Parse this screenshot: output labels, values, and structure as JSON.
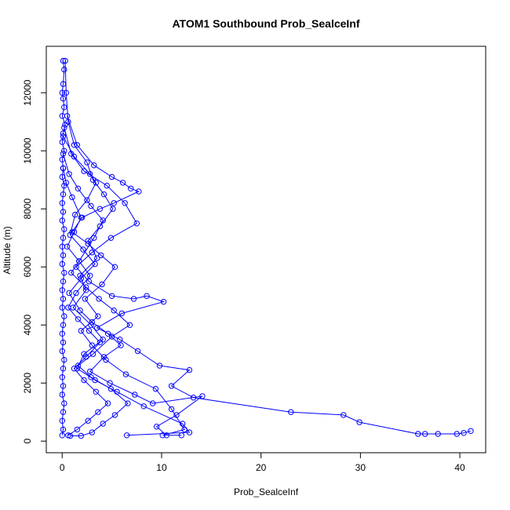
{
  "chart_data": {
    "type": "line",
    "title": "ATOM1 Southbound Prob_SealceInf",
    "xlabel": "Prob_SealceInf",
    "ylabel": "Altitude (m)",
    "xlim": [
      -1.6,
      42.6
    ],
    "ylim": [
      -400,
      13600
    ],
    "xticks": [
      0,
      10,
      20,
      30,
      40
    ],
    "yticks": [
      0,
      2000,
      4000,
      6000,
      8000,
      10000,
      12000
    ],
    "grid": false,
    "legend": "none",
    "marker": "open-circle",
    "color": "#0000ff",
    "series": [
      {
        "points": [
          [
            0.1,
            13100
          ],
          [
            0.2,
            12800
          ],
          [
            0.1,
            12300
          ],
          [
            0.0,
            12000
          ],
          [
            0.1,
            11800
          ],
          [
            0.2,
            11500
          ],
          [
            0.0,
            11200
          ],
          [
            0.3,
            10900
          ],
          [
            0.1,
            10600
          ],
          [
            0.0,
            10300
          ],
          [
            0.2,
            10000
          ],
          [
            0.0,
            9700
          ],
          [
            0.1,
            9400
          ],
          [
            0.0,
            9100
          ],
          [
            0.2,
            8800
          ],
          [
            0.1,
            8500
          ],
          [
            0.0,
            8200
          ],
          [
            0.1,
            7900
          ],
          [
            0.0,
            7600
          ],
          [
            0.2,
            7300
          ],
          [
            0.1,
            7000
          ],
          [
            0.0,
            6700
          ],
          [
            0.1,
            6400
          ],
          [
            0.0,
            6100
          ],
          [
            0.2,
            5800
          ],
          [
            0.1,
            5500
          ],
          [
            0.0,
            5200
          ],
          [
            0.1,
            4900
          ],
          [
            0.0,
            4600
          ],
          [
            0.2,
            4300
          ],
          [
            0.1,
            4000
          ],
          [
            0.0,
            3700
          ],
          [
            0.1,
            3400
          ],
          [
            0.0,
            3100
          ],
          [
            0.2,
            2800
          ],
          [
            0.1,
            2500
          ],
          [
            0.0,
            2200
          ],
          [
            0.1,
            1900
          ],
          [
            0.0,
            1600
          ],
          [
            0.2,
            1300
          ],
          [
            0.1,
            1000
          ],
          [
            0.0,
            700
          ],
          [
            0.1,
            400
          ],
          [
            0.0,
            200
          ]
        ]
      },
      {
        "points": [
          [
            0.3,
            13100
          ],
          [
            0.4,
            12000
          ],
          [
            0.6,
            11000
          ],
          [
            1.2,
            10200
          ],
          [
            2.5,
            9600
          ],
          [
            3.1,
            9000
          ],
          [
            4.2,
            8500
          ],
          [
            5.1,
            8000
          ],
          [
            3.8,
            7400
          ],
          [
            2.6,
            6900
          ],
          [
            3.5,
            6300
          ],
          [
            1.8,
            5700
          ],
          [
            2.4,
            5200
          ],
          [
            1.1,
            4600
          ],
          [
            2.9,
            4000
          ],
          [
            4.1,
            3500
          ],
          [
            2.2,
            3000
          ],
          [
            1.5,
            2500
          ],
          [
            3.3,
            2100
          ],
          [
            5.5,
            1700
          ],
          [
            8.2,
            1200
          ],
          [
            12.1,
            600
          ],
          [
            12.8,
            300
          ],
          [
            6.5,
            200
          ]
        ]
      },
      {
        "points": [
          [
            0.5,
            11200
          ],
          [
            1.5,
            10200
          ],
          [
            3.2,
            9500
          ],
          [
            5.0,
            9100
          ],
          [
            6.1,
            8900
          ],
          [
            6.9,
            8700
          ],
          [
            7.7,
            8600
          ],
          [
            5.2,
            8200
          ],
          [
            3.8,
            8000
          ],
          [
            2.0,
            7700
          ],
          [
            1.0,
            7200
          ],
          [
            2.6,
            6800
          ],
          [
            3.9,
            6400
          ],
          [
            5.3,
            6000
          ],
          [
            4.0,
            5400
          ],
          [
            2.3,
            4900
          ],
          [
            3.6,
            4300
          ],
          [
            1.9,
            3800
          ],
          [
            3.0,
            3300
          ],
          [
            4.4,
            2800
          ],
          [
            6.4,
            2300
          ],
          [
            9.4,
            1800
          ],
          [
            11.0,
            1100
          ],
          [
            12.3,
            400
          ],
          [
            10.1,
            200
          ]
        ]
      },
      {
        "points": [
          [
            0.2,
            10800
          ],
          [
            0.9,
            9900
          ],
          [
            2.2,
            9300
          ],
          [
            4.5,
            8800
          ],
          [
            6.3,
            8200
          ],
          [
            7.5,
            7500
          ],
          [
            4.9,
            7000
          ],
          [
            3.0,
            6500
          ],
          [
            1.4,
            6000
          ],
          [
            2.7,
            5500
          ],
          [
            5.0,
            5000
          ],
          [
            7.2,
            4900
          ],
          [
            8.5,
            5000
          ],
          [
            10.2,
            4800
          ],
          [
            6.0,
            4400
          ],
          [
            3.5,
            3900
          ],
          [
            5.8,
            3500
          ],
          [
            7.6,
            3100
          ],
          [
            9.8,
            2600
          ],
          [
            12.8,
            2450
          ],
          [
            11.0,
            1900
          ],
          [
            13.2,
            1500
          ],
          [
            23.0,
            1000
          ],
          [
            28.3,
            900
          ],
          [
            29.9,
            650
          ],
          [
            35.8,
            250
          ],
          [
            36.5,
            250
          ],
          [
            37.8,
            250
          ],
          [
            39.7,
            250
          ],
          [
            40.4,
            280
          ],
          [
            41.1,
            350
          ]
        ]
      },
      {
        "points": [
          [
            0.1,
            10500
          ],
          [
            1.2,
            9800
          ],
          [
            2.8,
            9200
          ],
          [
            3.4,
            8900
          ],
          [
            2.5,
            8300
          ],
          [
            1.3,
            7800
          ],
          [
            0.8,
            7100
          ],
          [
            2.1,
            6600
          ],
          [
            3.3,
            6100
          ],
          [
            1.9,
            5600
          ],
          [
            0.7,
            5100
          ],
          [
            1.8,
            4500
          ],
          [
            3.0,
            4100
          ],
          [
            4.6,
            3700
          ],
          [
            5.9,
            3300
          ],
          [
            4.2,
            2900
          ],
          [
            2.8,
            2400
          ],
          [
            4.8,
            2000
          ],
          [
            7.3,
            1600
          ],
          [
            9.1,
            1300
          ],
          [
            14.1,
            1550
          ],
          [
            11.5,
            900
          ],
          [
            9.5,
            500
          ],
          [
            10.5,
            200
          ],
          [
            12.0,
            200
          ]
        ]
      },
      {
        "points": [
          [
            0.1,
            9900
          ],
          [
            0.7,
            9200
          ],
          [
            1.6,
            8700
          ],
          [
            2.9,
            8100
          ],
          [
            4.1,
            7600
          ],
          [
            3.2,
            7000
          ],
          [
            1.7,
            6200
          ],
          [
            0.9,
            5800
          ],
          [
            2.4,
            5300
          ],
          [
            3.7,
            4900
          ],
          [
            5.2,
            4500
          ],
          [
            6.8,
            4000
          ],
          [
            5.0,
            3600
          ],
          [
            3.1,
            3000
          ],
          [
            1.6,
            2600
          ],
          [
            2.9,
            2200
          ],
          [
            4.9,
            1800
          ],
          [
            6.6,
            1300
          ],
          [
            5.3,
            900
          ],
          [
            4.1,
            600
          ],
          [
            3.0,
            300
          ],
          [
            1.9,
            180
          ],
          [
            0.8,
            180
          ]
        ]
      },
      {
        "points": [
          [
            0.1,
            9400
          ],
          [
            0.4,
            8900
          ],
          [
            1.0,
            8400
          ],
          [
            1.9,
            7700
          ],
          [
            1.2,
            7200
          ],
          [
            0.5,
            6700
          ],
          [
            1.7,
            6200
          ],
          [
            2.8,
            5700
          ],
          [
            1.4,
            5100
          ],
          [
            0.6,
            4600
          ],
          [
            1.6,
            4200
          ],
          [
            2.7,
            3800
          ],
          [
            3.8,
            3400
          ],
          [
            2.4,
            2900
          ],
          [
            1.2,
            2500
          ],
          [
            2.2,
            2100
          ],
          [
            3.4,
            1700
          ],
          [
            4.6,
            1300
          ],
          [
            3.6,
            1000
          ],
          [
            2.6,
            700
          ],
          [
            1.5,
            400
          ],
          [
            0.6,
            200
          ]
        ]
      }
    ]
  }
}
